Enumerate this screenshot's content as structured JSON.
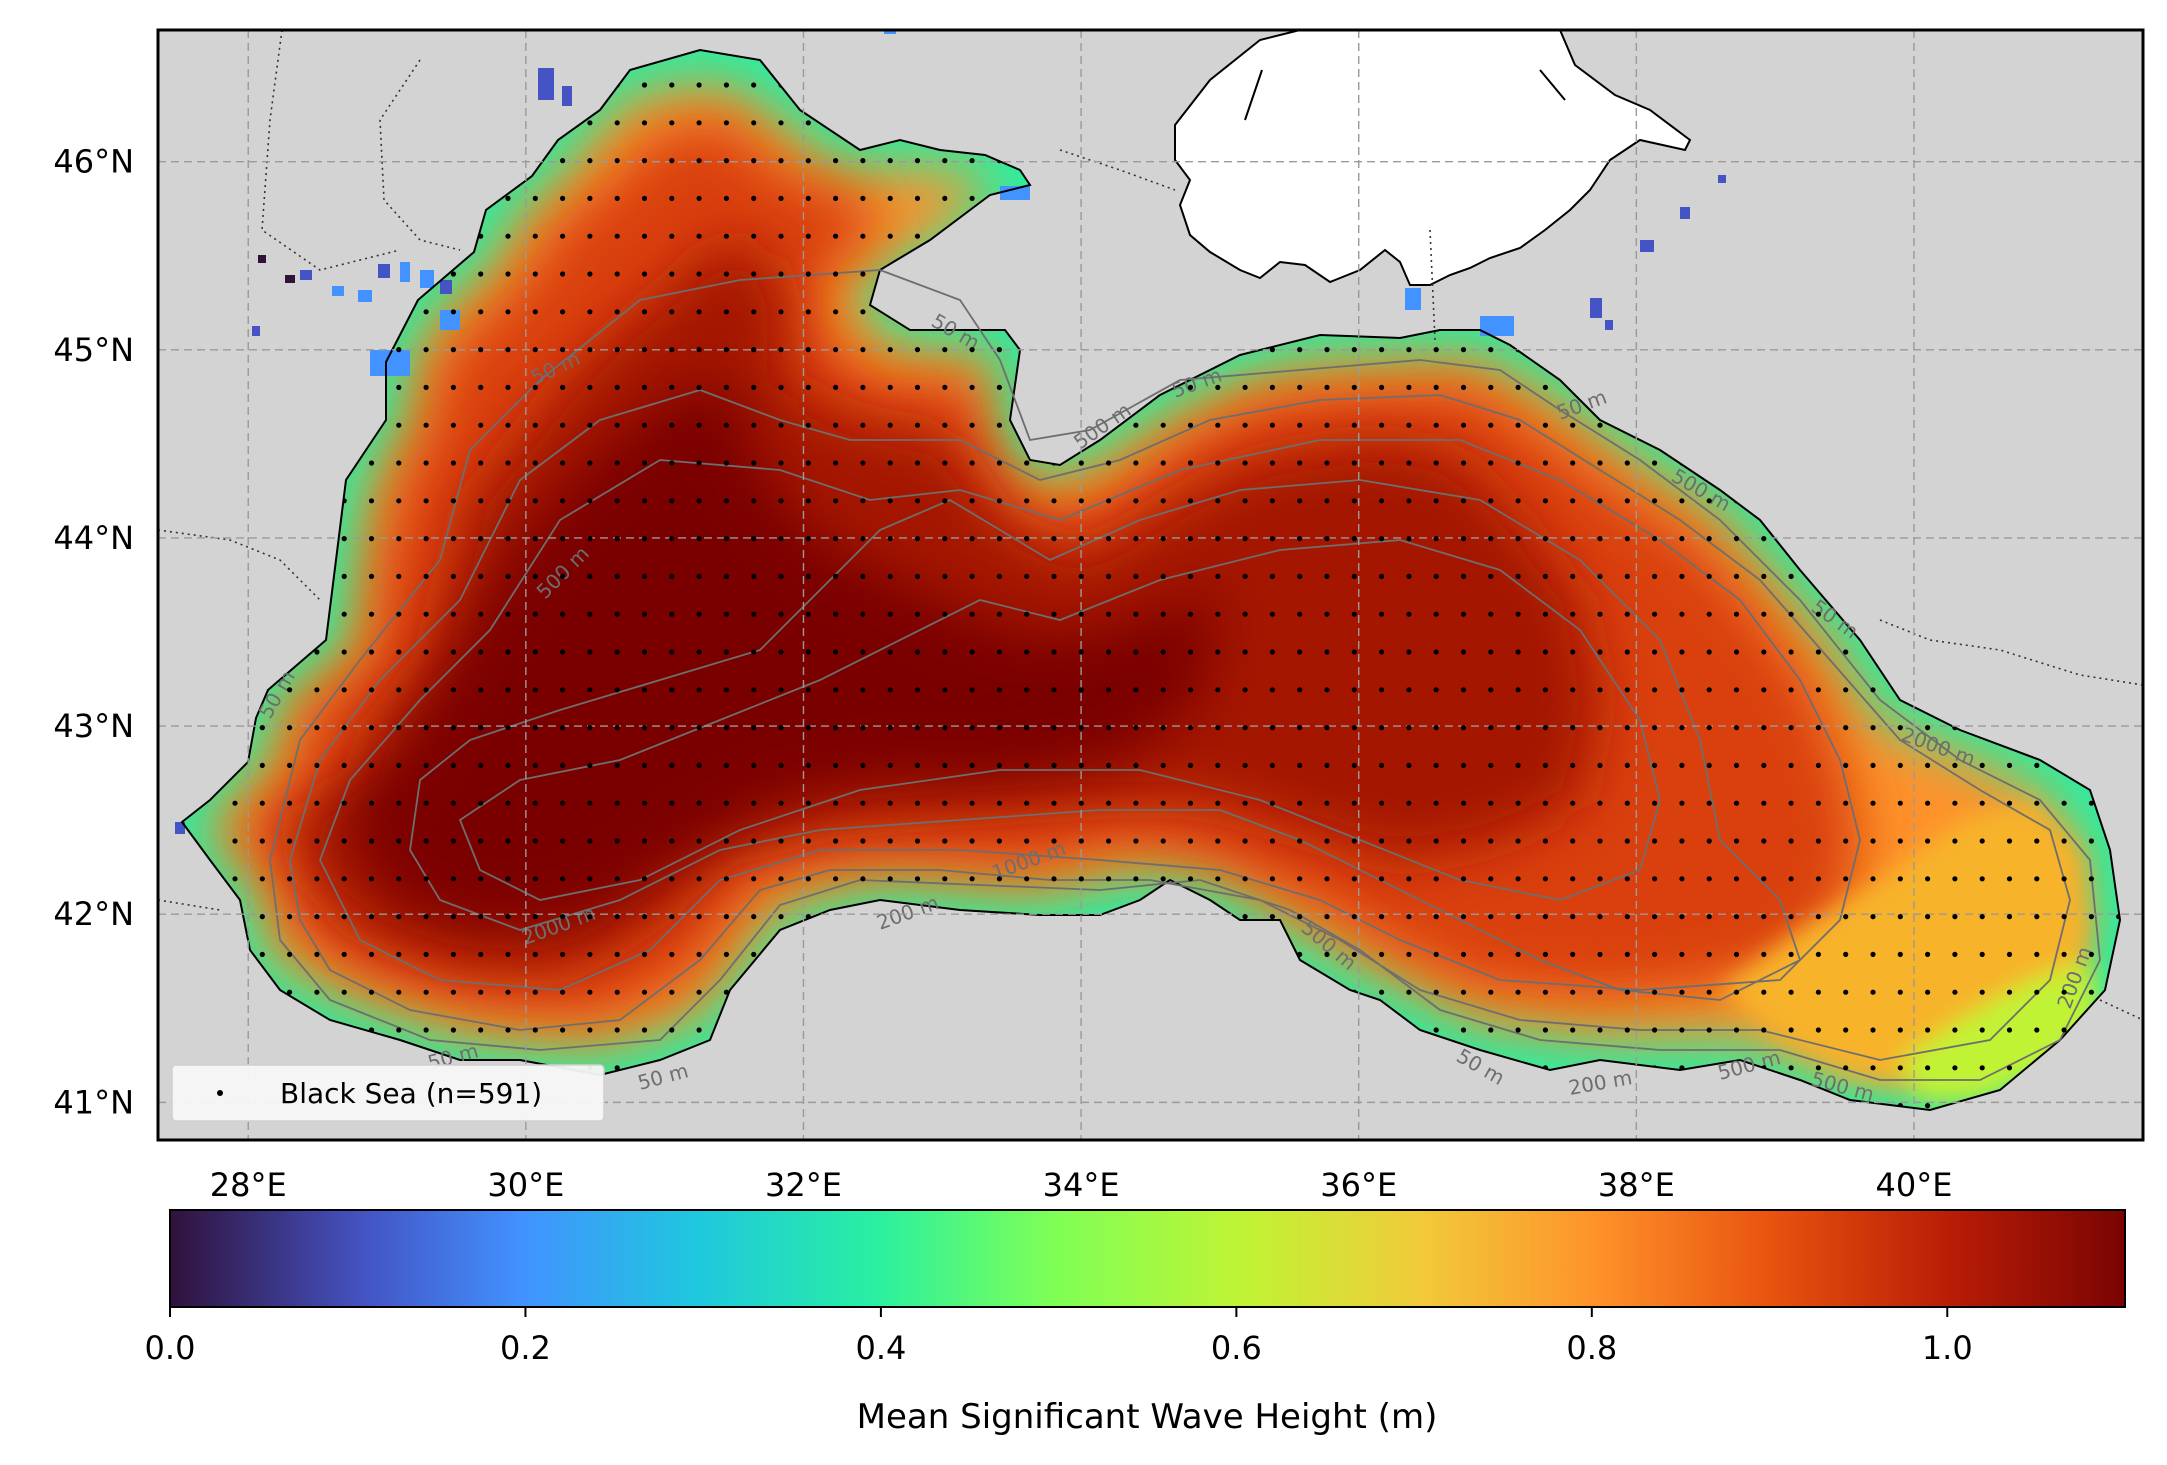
{
  "map": {
    "region": "Black Sea",
    "colormap": "turbo",
    "extent": {
      "lon": [
        27.35,
        41.65
      ],
      "lat": [
        40.8,
        46.7
      ]
    },
    "lat_ticks": [
      {
        "value": 41,
        "label": "41°N"
      },
      {
        "value": 42,
        "label": "42°N"
      },
      {
        "value": 43,
        "label": "43°N"
      },
      {
        "value": 44,
        "label": "44°N"
      },
      {
        "value": 45,
        "label": "45°N"
      },
      {
        "value": 46,
        "label": "46°N"
      }
    ],
    "lon_ticks": [
      {
        "value": 28,
        "label": "28°E"
      },
      {
        "value": 30,
        "label": "30°E"
      },
      {
        "value": 32,
        "label": "32°E"
      },
      {
        "value": 34,
        "label": "34°E"
      },
      {
        "value": 36,
        "label": "36°E"
      },
      {
        "value": 38,
        "label": "38°E"
      },
      {
        "value": 40,
        "label": "40°E"
      }
    ],
    "gridlines": true,
    "land_color": "#d3d3d3",
    "legend": {
      "label": "Black Sea (n=591)",
      "placement": "lower-left"
    },
    "contour_labels": [
      "50 m",
      "200 m",
      "500 m",
      "1000 m",
      "2000 m"
    ],
    "station_count": 591
  },
  "colorbar": {
    "label": "Mean Significant Wave Height (m)",
    "min": 0.0,
    "max": 1.1,
    "ticks": [
      {
        "value": 0.0,
        "label": "0.0"
      },
      {
        "value": 0.2,
        "label": "0.2"
      },
      {
        "value": 0.4,
        "label": "0.4"
      },
      {
        "value": 0.6,
        "label": "0.6"
      },
      {
        "value": 0.8,
        "label": "0.8"
      },
      {
        "value": 1.0,
        "label": "1.0"
      }
    ]
  },
  "chart_data": {
    "type": "heatmap",
    "variable": "Mean Significant Wave Height",
    "units": "m",
    "value_range": [
      0.0,
      1.1
    ],
    "max_region": "western basin near 31°E–32°E, 42.5°N–43.5°N (~1.1 m)",
    "samples": [
      {
        "lon": 30.5,
        "lat": 43.0,
        "value": 1.1
      },
      {
        "lon": 32.0,
        "lat": 43.0,
        "value": 1.1
      },
      {
        "lon": 34.0,
        "lat": 43.5,
        "value": 1.0
      },
      {
        "lon": 36.0,
        "lat": 43.0,
        "value": 0.95
      },
      {
        "lon": 38.0,
        "lat": 42.5,
        "value": 0.85
      },
      {
        "lon": 40.0,
        "lat": 42.0,
        "value": 0.75
      },
      {
        "lon": 40.8,
        "lat": 41.5,
        "value": 0.6
      },
      {
        "lon": 31.0,
        "lat": 45.5,
        "value": 0.95
      },
      {
        "lon": 28.5,
        "lat": 42.5,
        "value": 0.9
      }
    ]
  }
}
